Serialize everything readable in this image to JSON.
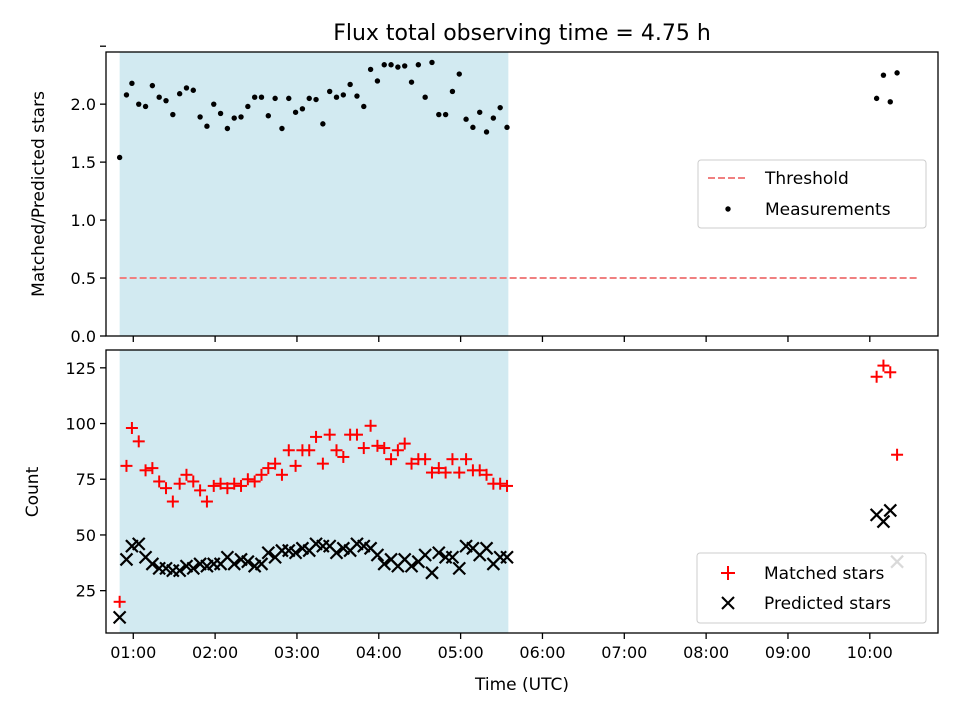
{
  "chart_data": [
    {
      "type": "scatter",
      "title": "Flux total observing time = 4.75 h",
      "xlabel": "",
      "ylabel": "Matched/Predicted stars",
      "xlim": [
        "00:40",
        "10:50"
      ],
      "ylim": [
        0,
        2.45
      ],
      "yticks": [
        0.0,
        0.5,
        1.0,
        1.5,
        2.0,
        2.5
      ],
      "ytick_labels": [
        "0.0",
        "0.5",
        "1.0",
        "1.5",
        "2.0",
        ""
      ],
      "grid": false,
      "legend_position": "center-right",
      "shaded_interval": [
        "00:50",
        "05:35"
      ],
      "shade_color": "#add8e6",
      "series": [
        {
          "name": "Threshold",
          "style": "dashed-line",
          "color": "#f08080",
          "points": [
            {
              "x": "00:50",
              "y": 0.5
            },
            {
              "x": "10:35",
              "y": 0.5
            }
          ]
        },
        {
          "name": "Measurements",
          "style": "dot",
          "color": "#000000",
          "points": [
            {
              "x": "00:50",
              "y": 1.54
            },
            {
              "x": "00:55",
              "y": 2.08
            },
            {
              "x": "00:59",
              "y": 2.18
            },
            {
              "x": "01:04",
              "y": 2.0
            },
            {
              "x": "01:09",
              "y": 1.98
            },
            {
              "x": "01:14",
              "y": 2.16
            },
            {
              "x": "01:19",
              "y": 2.06
            },
            {
              "x": "01:24",
              "y": 2.03
            },
            {
              "x": "01:29",
              "y": 1.91
            },
            {
              "x": "01:34",
              "y": 2.09
            },
            {
              "x": "01:39",
              "y": 2.14
            },
            {
              "x": "01:44",
              "y": 2.12
            },
            {
              "x": "01:49",
              "y": 1.89
            },
            {
              "x": "01:54",
              "y": 1.81
            },
            {
              "x": "01:59",
              "y": 2.0
            },
            {
              "x": "02:04",
              "y": 1.92
            },
            {
              "x": "02:09",
              "y": 1.79
            },
            {
              "x": "02:14",
              "y": 1.88
            },
            {
              "x": "02:19",
              "y": 1.89
            },
            {
              "x": "02:24",
              "y": 1.98
            },
            {
              "x": "02:29",
              "y": 2.06
            },
            {
              "x": "02:34",
              "y": 2.06
            },
            {
              "x": "02:39",
              "y": 1.9
            },
            {
              "x": "02:44",
              "y": 2.05
            },
            {
              "x": "02:49",
              "y": 1.79
            },
            {
              "x": "02:54",
              "y": 2.05
            },
            {
              "x": "02:59",
              "y": 1.93
            },
            {
              "x": "03:04",
              "y": 1.96
            },
            {
              "x": "03:09",
              "y": 2.05
            },
            {
              "x": "03:14",
              "y": 2.04
            },
            {
              "x": "03:19",
              "y": 1.83
            },
            {
              "x": "03:24",
              "y": 2.11
            },
            {
              "x": "03:29",
              "y": 2.06
            },
            {
              "x": "03:34",
              "y": 2.08
            },
            {
              "x": "03:39",
              "y": 2.17
            },
            {
              "x": "03:44",
              "y": 2.07
            },
            {
              "x": "03:49",
              "y": 1.98
            },
            {
              "x": "03:54",
              "y": 2.3
            },
            {
              "x": "03:59",
              "y": 2.2
            },
            {
              "x": "04:04",
              "y": 2.34
            },
            {
              "x": "04:09",
              "y": 2.34
            },
            {
              "x": "04:14",
              "y": 2.32
            },
            {
              "x": "04:19",
              "y": 2.33
            },
            {
              "x": "04:24",
              "y": 2.19
            },
            {
              "x": "04:29",
              "y": 2.34
            },
            {
              "x": "04:34",
              "y": 2.06
            },
            {
              "x": "04:39",
              "y": 2.36
            },
            {
              "x": "04:44",
              "y": 1.91
            },
            {
              "x": "04:49",
              "y": 1.91
            },
            {
              "x": "04:54",
              "y": 2.11
            },
            {
              "x": "04:59",
              "y": 2.26
            },
            {
              "x": "05:04",
              "y": 1.87
            },
            {
              "x": "05:09",
              "y": 1.8
            },
            {
              "x": "05:14",
              "y": 1.93
            },
            {
              "x": "05:19",
              "y": 1.76
            },
            {
              "x": "05:24",
              "y": 1.88
            },
            {
              "x": "05:29",
              "y": 1.97
            },
            {
              "x": "05:34",
              "y": 1.8
            },
            {
              "x": "10:05",
              "y": 2.05
            },
            {
              "x": "10:10",
              "y": 2.25
            },
            {
              "x": "10:15",
              "y": 2.02
            },
            {
              "x": "10:20",
              "y": 2.27
            }
          ]
        }
      ]
    },
    {
      "type": "scatter",
      "title": "",
      "xlabel": "Time (UTC)",
      "ylabel": "Count",
      "xlim": [
        "00:40",
        "10:50"
      ],
      "ylim": [
        6,
        133
      ],
      "yticks": [
        25,
        50,
        75,
        100,
        125
      ],
      "xticks": [
        "01:00",
        "02:00",
        "03:00",
        "04:00",
        "05:00",
        "06:00",
        "07:00",
        "08:00",
        "09:00",
        "10:00"
      ],
      "grid": false,
      "legend_position": "bottom-right",
      "shaded_interval": [
        "00:50",
        "05:35"
      ],
      "shade_color": "#add8e6",
      "series": [
        {
          "name": "Matched stars",
          "marker": "plus",
          "color": "#ff0000",
          "points": [
            {
              "x": "00:50",
              "y": 20
            },
            {
              "x": "00:55",
              "y": 81
            },
            {
              "x": "00:59",
              "y": 98
            },
            {
              "x": "01:04",
              "y": 92
            },
            {
              "x": "01:09",
              "y": 79
            },
            {
              "x": "01:14",
              "y": 80
            },
            {
              "x": "01:19",
              "y": 74
            },
            {
              "x": "01:24",
              "y": 71
            },
            {
              "x": "01:29",
              "y": 65
            },
            {
              "x": "01:34",
              "y": 73
            },
            {
              "x": "01:39",
              "y": 77
            },
            {
              "x": "01:44",
              "y": 74
            },
            {
              "x": "01:49",
              "y": 70
            },
            {
              "x": "01:54",
              "y": 65
            },
            {
              "x": "01:59",
              "y": 72
            },
            {
              "x": "02:04",
              "y": 73
            },
            {
              "x": "02:09",
              "y": 71
            },
            {
              "x": "02:14",
              "y": 73
            },
            {
              "x": "02:19",
              "y": 72
            },
            {
              "x": "02:24",
              "y": 75
            },
            {
              "x": "02:29",
              "y": 74
            },
            {
              "x": "02:34",
              "y": 77
            },
            {
              "x": "02:39",
              "y": 80
            },
            {
              "x": "02:44",
              "y": 82
            },
            {
              "x": "02:49",
              "y": 77
            },
            {
              "x": "02:54",
              "y": 88
            },
            {
              "x": "02:59",
              "y": 81
            },
            {
              "x": "03:04",
              "y": 88
            },
            {
              "x": "03:09",
              "y": 88
            },
            {
              "x": "03:14",
              "y": 94
            },
            {
              "x": "03:19",
              "y": 82
            },
            {
              "x": "03:24",
              "y": 95
            },
            {
              "x": "03:29",
              "y": 88
            },
            {
              "x": "03:34",
              "y": 85
            },
            {
              "x": "03:39",
              "y": 95
            },
            {
              "x": "03:44",
              "y": 95
            },
            {
              "x": "03:49",
              "y": 89
            },
            {
              "x": "03:54",
              "y": 99
            },
            {
              "x": "03:59",
              "y": 90
            },
            {
              "x": "04:04",
              "y": 89
            },
            {
              "x": "04:09",
              "y": 84
            },
            {
              "x": "04:14",
              "y": 88
            },
            {
              "x": "04:19",
              "y": 91
            },
            {
              "x": "04:24",
              "y": 82
            },
            {
              "x": "04:29",
              "y": 84
            },
            {
              "x": "04:34",
              "y": 84
            },
            {
              "x": "04:39",
              "y": 78
            },
            {
              "x": "04:44",
              "y": 80
            },
            {
              "x": "04:49",
              "y": 78
            },
            {
              "x": "04:54",
              "y": 84
            },
            {
              "x": "04:59",
              "y": 78
            },
            {
              "x": "05:04",
              "y": 84
            },
            {
              "x": "05:09",
              "y": 79
            },
            {
              "x": "05:14",
              "y": 79
            },
            {
              "x": "05:19",
              "y": 77
            },
            {
              "x": "05:24",
              "y": 73
            },
            {
              "x": "05:29",
              "y": 73
            },
            {
              "x": "05:34",
              "y": 72
            },
            {
              "x": "10:05",
              "y": 121
            },
            {
              "x": "10:10",
              "y": 126
            },
            {
              "x": "10:15",
              "y": 123
            },
            {
              "x": "10:20",
              "y": 86
            }
          ]
        },
        {
          "name": "Predicted stars",
          "marker": "x",
          "color": "#000000",
          "points": [
            {
              "x": "00:50",
              "y": 13
            },
            {
              "x": "00:55",
              "y": 39
            },
            {
              "x": "00:59",
              "y": 45
            },
            {
              "x": "01:04",
              "y": 46
            },
            {
              "x": "01:09",
              "y": 40
            },
            {
              "x": "01:14",
              "y": 37
            },
            {
              "x": "01:19",
              "y": 35
            },
            {
              "x": "01:24",
              "y": 35
            },
            {
              "x": "01:29",
              "y": 34
            },
            {
              "x": "01:34",
              "y": 34
            },
            {
              "x": "01:39",
              "y": 36
            },
            {
              "x": "01:44",
              "y": 35
            },
            {
              "x": "01:49",
              "y": 37
            },
            {
              "x": "01:54",
              "y": 36
            },
            {
              "x": "01:59",
              "y": 37
            },
            {
              "x": "02:04",
              "y": 37
            },
            {
              "x": "02:09",
              "y": 40
            },
            {
              "x": "02:14",
              "y": 37
            },
            {
              "x": "02:19",
              "y": 39
            },
            {
              "x": "02:24",
              "y": 38
            },
            {
              "x": "02:29",
              "y": 36
            },
            {
              "x": "02:34",
              "y": 37
            },
            {
              "x": "02:39",
              "y": 42
            },
            {
              "x": "02:44",
              "y": 40
            },
            {
              "x": "02:49",
              "y": 43
            },
            {
              "x": "02:54",
              "y": 43
            },
            {
              "x": "02:59",
              "y": 42
            },
            {
              "x": "03:04",
              "y": 44
            },
            {
              "x": "03:09",
              "y": 43
            },
            {
              "x": "03:14",
              "y": 46
            },
            {
              "x": "03:19",
              "y": 45
            },
            {
              "x": "03:24",
              "y": 45
            },
            {
              "x": "03:29",
              "y": 42
            },
            {
              "x": "03:34",
              "y": 44
            },
            {
              "x": "03:39",
              "y": 43
            },
            {
              "x": "03:44",
              "y": 46
            },
            {
              "x": "03:49",
              "y": 45
            },
            {
              "x": "03:54",
              "y": 44
            },
            {
              "x": "03:59",
              "y": 41
            },
            {
              "x": "04:04",
              "y": 37
            },
            {
              "x": "04:09",
              "y": 39
            },
            {
              "x": "04:14",
              "y": 36
            },
            {
              "x": "04:19",
              "y": 39
            },
            {
              "x": "04:24",
              "y": 36
            },
            {
              "x": "04:29",
              "y": 38
            },
            {
              "x": "04:34",
              "y": 41
            },
            {
              "x": "04:39",
              "y": 33
            },
            {
              "x": "04:44",
              "y": 42
            },
            {
              "x": "04:49",
              "y": 40
            },
            {
              "x": "04:54",
              "y": 40
            },
            {
              "x": "04:59",
              "y": 35
            },
            {
              "x": "05:04",
              "y": 45
            },
            {
              "x": "05:09",
              "y": 44
            },
            {
              "x": "05:14",
              "y": 41
            },
            {
              "x": "05:19",
              "y": 44
            },
            {
              "x": "05:24",
              "y": 37
            },
            {
              "x": "05:29",
              "y": 40
            },
            {
              "x": "05:34",
              "y": 40
            },
            {
              "x": "10:05",
              "y": 59
            },
            {
              "x": "10:10",
              "y": 56
            },
            {
              "x": "10:15",
              "y": 61
            },
            {
              "x": "10:20",
              "y": 38
            }
          ]
        }
      ]
    }
  ]
}
